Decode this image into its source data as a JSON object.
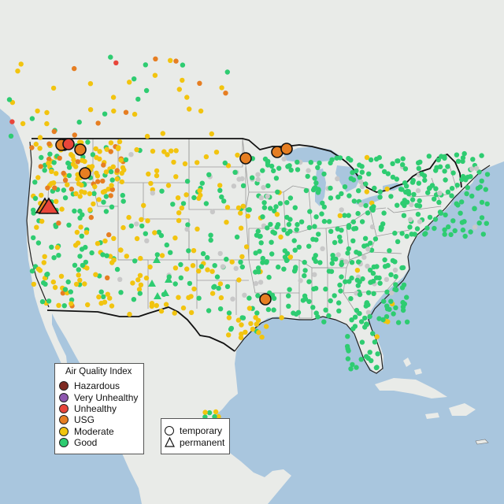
{
  "legend": {
    "title": "Air Quality Index",
    "categories": [
      {
        "label": "Hazardous",
        "color": "#7e2a22"
      },
      {
        "label": "Very Unhealthy",
        "color": "#8e58b0"
      },
      {
        "label": "Unhealthy",
        "color": "#e8453a"
      },
      {
        "label": "USG",
        "color": "#e67e22"
      },
      {
        "label": "Moderate",
        "color": "#f2c40f"
      },
      {
        "label": "Good",
        "color": "#2ecc71"
      }
    ],
    "types": {
      "temporary": "temporary",
      "permanent": "permanent"
    }
  },
  "colors": {
    "water": "#a9c6de",
    "land": "#e9ebe8",
    "border": "#111111",
    "state_line": "#9a9a9a",
    "no_data": "#c8c8c8"
  },
  "large_markers": [
    {
      "aqi": "USG",
      "type": "temporary"
    },
    {
      "aqi": "USG",
      "type": "temporary"
    },
    {
      "aqi": "Unhealthy",
      "type": "temporary"
    },
    {
      "aqi": "USG",
      "type": "temporary"
    },
    {
      "aqi": "USG",
      "type": "temporary"
    },
    {
      "aqi": "USG",
      "type": "temporary"
    },
    {
      "aqi": "USG",
      "type": "temporary"
    },
    {
      "aqi": "USG",
      "type": "temporary"
    },
    {
      "aqi": "USG",
      "type": "temporary"
    },
    {
      "aqi": "USG",
      "type": "permanent"
    },
    {
      "aqi": "Unhealthy",
      "type": "permanent"
    }
  ]
}
